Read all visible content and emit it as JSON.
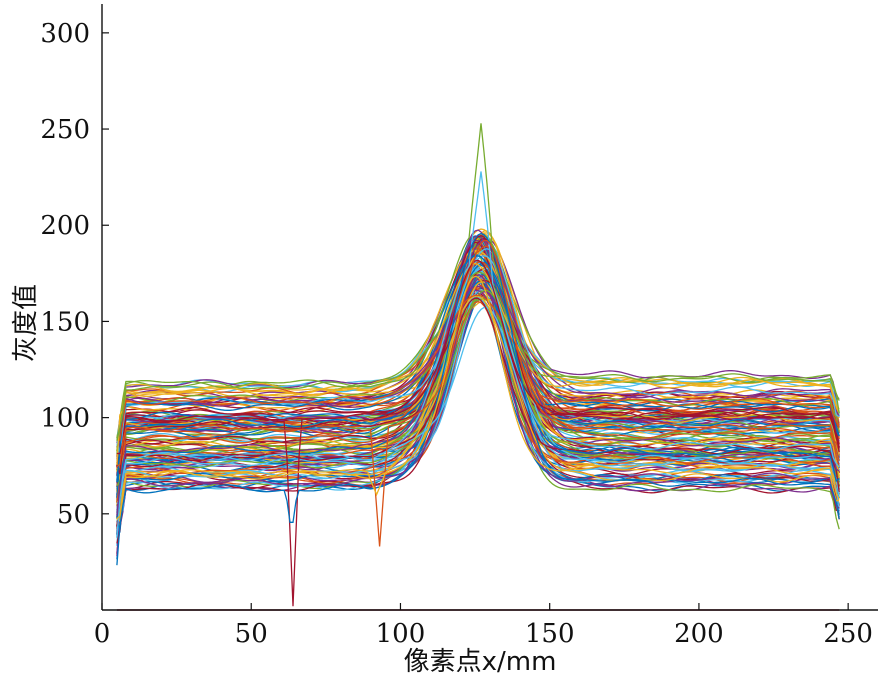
{
  "chart_data": {
    "type": "line",
    "title": "",
    "xlabel": "像素点x/mm",
    "ylabel": "灰度值",
    "xlim": [
      0,
      260
    ],
    "ylim": [
      0,
      315
    ],
    "x_ticks": [
      0,
      50,
      100,
      150,
      200,
      250
    ],
    "y_ticks": [
      50,
      100,
      150,
      200,
      250,
      300
    ],
    "grid": false,
    "legend": "none",
    "series_note": "many overlapping gray-level profile curves (unnamed)",
    "profile_shape": {
      "x_range": [
        5,
        247
      ],
      "baseline_left_range": [
        62,
        118
      ],
      "baseline_right_range": [
        65,
        122
      ],
      "peak_center_x": 127,
      "peak_value_range": [
        158,
        197
      ],
      "spike_peak_values": [
        253,
        228
      ],
      "dip_at_x64": 2,
      "dip_at_x93": 33
    },
    "colors": [
      "#0072BD",
      "#D95319",
      "#EDB120",
      "#7E2F8E",
      "#77AC30",
      "#4DBEEE",
      "#A2142F"
    ]
  }
}
